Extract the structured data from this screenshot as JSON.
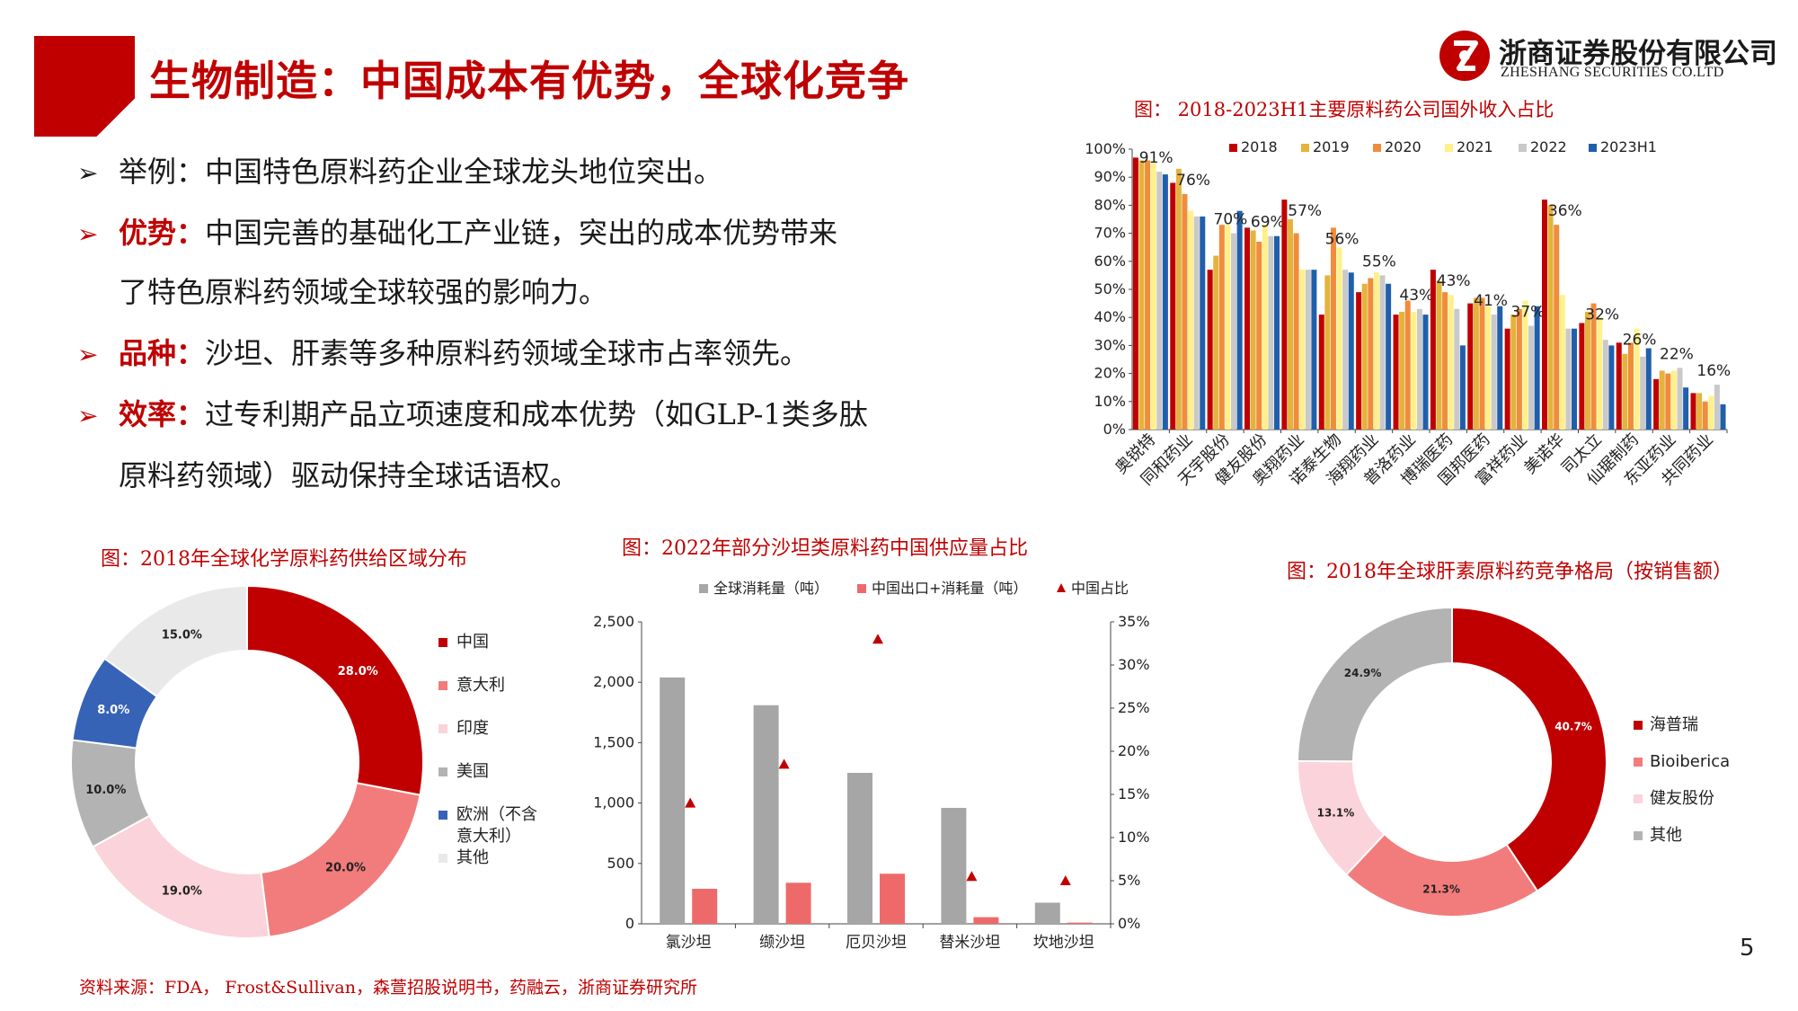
{
  "header": {
    "title": "生物制造：中国成本有优势，全球化竞争",
    "logo_cn": "浙商证券股份有限公司",
    "logo_en": "ZHESHANG SECURITIES CO.LTD"
  },
  "bullets": [
    {
      "key": "",
      "body": "举例：中国特色原料药企业全球龙头地位突出。",
      "cont": ""
    },
    {
      "key": "优势：",
      "body": "中国完善的基础化工产业链，突出的成本优势带来",
      "cont": "了特色原料药领域全球较强的影响力。"
    },
    {
      "key": "品种：",
      "body": "沙坦、肝素等多种原料药领域全球市占率领先。",
      "cont": ""
    },
    {
      "key": "效率：",
      "body": "过专利期产品立项速度和成本优势（如GLP-1类多肽",
      "cont": "原料药领域）驱动保持全球话语权。"
    }
  ],
  "bullet_arrow": "➢",
  "source_note": "资料来源：FDA， Frost&Sullivan，森萱招股说明书，药融云，浙商证券研究所",
  "page_number": "5",
  "colors": {
    "brand_red": "#c00000",
    "c2018": "#c00000",
    "c2019": "#e5b33b",
    "c2020": "#f08c3c",
    "c2021": "#fff08a",
    "c2022": "#c9c9c9",
    "c2023H1": "#1f5fac",
    "cn": "#c00000",
    "it": "#f27c7c",
    "in": "#fbd3da",
    "us": "#b3b3b3",
    "eu": "#3763b6",
    "other": "#e9e9e9",
    "gray": "#a6a6a6",
    "pink_red": "#ee6a6a"
  },
  "chart_data": [
    {
      "id": "overseas",
      "type": "bar",
      "title": "图： 2018-2023H1主要原料药公司国外收入占比",
      "categories": [
        "奥锐特",
        "同和药业",
        "天宇股份",
        "健友股份",
        "奥翔药业",
        "诺泰生物",
        "海翔药业",
        "普洛药业",
        "博瑞医药",
        "国邦医药",
        "富祥药业",
        "美诺华",
        "司太立",
        "仙琚制药",
        "东亚药业",
        "共同药业"
      ],
      "series": [
        {
          "name": "2018",
          "values": [
            97,
            88,
            57,
            72,
            82,
            41,
            49,
            41,
            57,
            45,
            36,
            82,
            38,
            31,
            18,
            13
          ]
        },
        {
          "name": "2019",
          "values": [
            96,
            93,
            62,
            71,
            75,
            55,
            52,
            42,
            53,
            47,
            41,
            80,
            42,
            27,
            21,
            13
          ]
        },
        {
          "name": "2020",
          "values": [
            96,
            84,
            73,
            67,
            70,
            72,
            54,
            46,
            49,
            47,
            43,
            73,
            45,
            31,
            20,
            10
          ]
        },
        {
          "name": "2021",
          "values": [
            95,
            78,
            73,
            73,
            57,
            65,
            56,
            42,
            48,
            44,
            46,
            48,
            40,
            36,
            21,
            12
          ]
        },
        {
          "name": "2022",
          "values": [
            92,
            76,
            70,
            69,
            57,
            57,
            55,
            43,
            43,
            41,
            37,
            36,
            32,
            26,
            22,
            16
          ]
        },
        {
          "name": "2023H1",
          "values": [
            91,
            76,
            78,
            69,
            57,
            56,
            52,
            41,
            30,
            44,
            44,
            36,
            30,
            29,
            15,
            9
          ]
        }
      ],
      "data_labels": [
        "91%",
        "76%",
        "70%",
        "69%",
        "57%",
        "56%",
        "55%",
        "43%",
        "43%",
        "41%",
        "37%",
        "36%",
        "32%",
        "26%",
        "22%",
        "16%"
      ],
      "yticks": [
        "0%",
        "10%",
        "20%",
        "30%",
        "40%",
        "50%",
        "60%",
        "70%",
        "80%",
        "90%",
        "100%"
      ],
      "ylim": [
        0,
        100
      ],
      "legend": "top"
    },
    {
      "id": "api_supply",
      "type": "pie",
      "title": "图：2018年全球化学原料药供给区域分布",
      "slices": [
        {
          "label": "中国",
          "value": 28.0,
          "text": "28.0%",
          "color_key": "cn"
        },
        {
          "label": "意大利",
          "value": 20.0,
          "text": "20.0%",
          "color_key": "it"
        },
        {
          "label": "印度",
          "value": 19.0,
          "text": "19.0%",
          "color_key": "in"
        },
        {
          "label": "美国",
          "value": 10.0,
          "text": "10.0%",
          "color_key": "us"
        },
        {
          "label": "欧洲（不含意大利）",
          "value": 8.0,
          "text": "8.0%",
          "color_key": "eu"
        },
        {
          "label": "其他",
          "value": 15.0,
          "text": "15.0%",
          "color_key": "other"
        }
      ],
      "legend_lines": [
        [
          "中国"
        ],
        [
          "意大利"
        ],
        [
          "印度"
        ],
        [
          "美国"
        ],
        [
          "欧洲（不含",
          "意大利）"
        ],
        [
          "其他"
        ]
      ]
    },
    {
      "id": "sartan",
      "type": "bar",
      "title": "图：2022年部分沙坦类原料药中国供应量占比",
      "categories": [
        "氯沙坦",
        "缬沙坦",
        "厄贝沙坦",
        "替米沙坦",
        "坎地沙坦"
      ],
      "series": [
        {
          "name": "全球消耗量（吨）",
          "values": [
            2040,
            1810,
            1250,
            960,
            175
          ]
        },
        {
          "name": "中国出口+消耗量（吨）",
          "values": [
            290,
            340,
            415,
            55,
            10
          ]
        },
        {
          "name": "中国占比",
          "values": [
            14,
            18.5,
            33,
            5.5,
            5
          ]
        }
      ],
      "yticks_left": [
        "0",
        "500",
        "1,000",
        "1,500",
        "2,000",
        "2,500"
      ],
      "yticks_right": [
        "0%",
        "5%",
        "10%",
        "15%",
        "20%",
        "25%",
        "30%",
        "35%"
      ],
      "ylim_left": [
        0,
        2500
      ],
      "ylim_right": [
        0,
        35
      ],
      "legend": "top"
    },
    {
      "id": "heparin",
      "type": "pie",
      "title": "图：2018年全球肝素原料药竞争格局（按销售额）",
      "slices": [
        {
          "label": "海普瑞",
          "value": 40.7,
          "text": "40.7%",
          "color_key": "cn"
        },
        {
          "label": "Bioiberica",
          "value": 21.3,
          "text": "21.3%",
          "color_key": "it"
        },
        {
          "label": "健友股份",
          "value": 13.1,
          "text": "13.1%",
          "color_key": "in"
        },
        {
          "label": "其他",
          "value": 24.9,
          "text": "24.9%",
          "color_key": "us"
        }
      ]
    }
  ]
}
